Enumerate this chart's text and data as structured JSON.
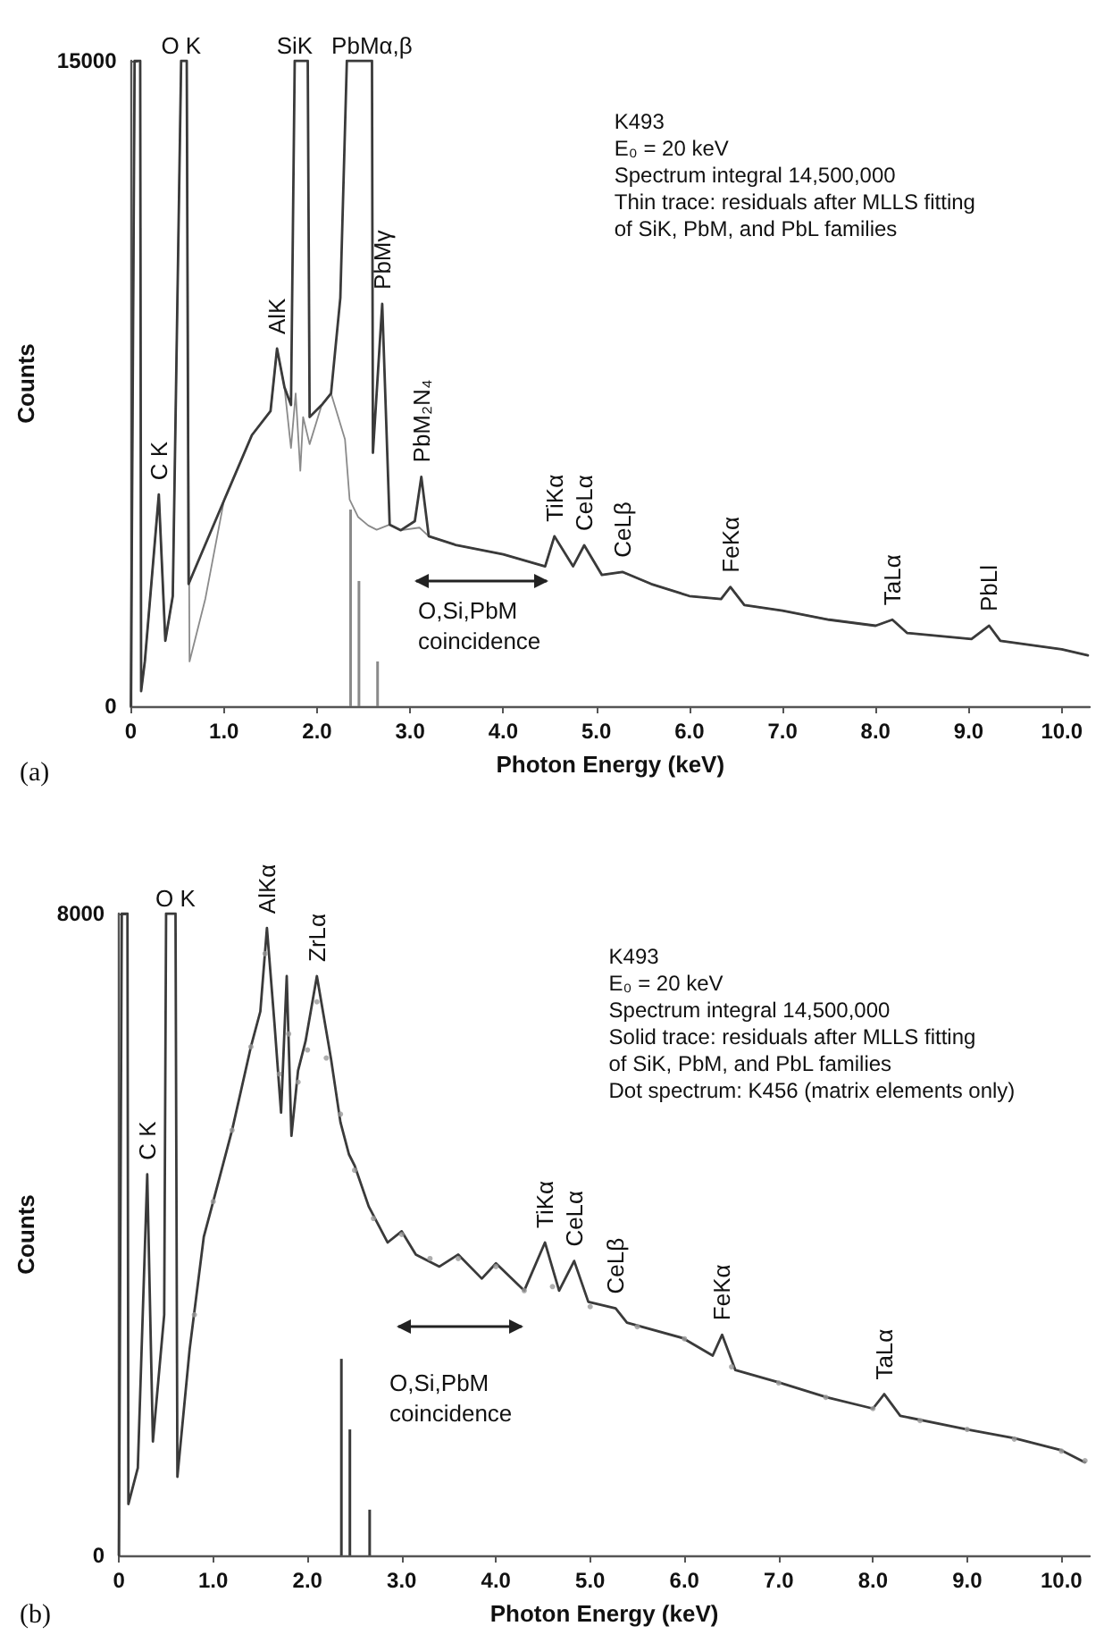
{
  "chart_data": [
    {
      "type": "line",
      "title": "(a)",
      "xlabel": "Photon Energy (keV)",
      "ylabel": "Counts",
      "xlim": [
        0,
        10.3
      ],
      "xticks": [
        0,
        {
          "value": 1,
          "label": "1.0"
        },
        {
          "value": 2,
          "label": "2.0"
        },
        {
          "value": 3,
          "label": "3.0"
        },
        {
          "value": 4,
          "label": "4.0"
        },
        {
          "value": 5,
          "label": "5.0"
        },
        {
          "value": 6,
          "label": "6.0"
        },
        {
          "value": 7,
          "label": "7.0"
        },
        {
          "value": 8,
          "label": "8.0"
        },
        {
          "value": 9,
          "label": "9.0"
        },
        {
          "value": 10,
          "label": "10.0"
        }
      ],
      "ylim": [
        0,
        15000
      ],
      "yticks": [
        0,
        15000
      ],
      "series": [
        {
          "color": "#8a8a8a",
          "x": [
            0,
            0.04,
            0.1,
            0.11,
            0.15,
            0.3,
            0.37,
            0.45,
            0.54,
            0.6,
            0.63,
            0.8,
            1.0,
            1.3,
            1.5,
            1.57,
            1.65,
            1.72,
            1.77,
            1.82,
            1.85,
            1.92,
            2.05,
            2.15,
            2.3,
            2.35,
            2.44,
            2.55,
            2.64,
            2.78,
            2.9,
            3.1,
            3.2,
            3.5,
            4.0,
            4.45,
            4.55,
            4.75,
            4.87,
            5.06,
            5.28,
            5.59,
            6.0,
            6.34,
            6.44,
            6.59,
            7.0,
            7.5,
            8.0,
            8.18,
            8.34,
            9.03,
            9.22,
            9.34,
            10.0,
            10.28
          ],
          "values": [
            0,
            15000,
            15000,
            350,
            1040,
            4920,
            1520,
            2560,
            15000,
            15000,
            1040,
            2500,
            4780,
            6300,
            6860,
            8310,
            7410,
            6000,
            7270,
            5470,
            6720,
            6090,
            7000,
            7270,
            6200,
            4800,
            4400,
            4200,
            4100,
            4220,
            4090,
            4150,
            3950,
            3740,
            3530,
            3250,
            3950,
            3250,
            3740,
            3050,
            3120,
            2840,
            2560,
            2490,
            2770,
            2350,
            2220,
            2010,
            1870,
            2010,
            1700,
            1560,
            1870,
            1520,
            1320,
            1180
          ]
        },
        {
          "color": "#3a3a3a",
          "x": [
            0,
            0.04,
            0.1,
            0.11,
            0.15,
            0.3,
            0.37,
            0.45,
            0.54,
            0.6,
            0.62,
            0.7,
            1.0,
            1.3,
            1.5,
            1.57,
            1.65,
            1.72,
            1.76,
            1.9,
            1.92,
            2.05,
            2.15,
            2.25,
            2.32,
            2.59,
            2.6,
            2.7,
            2.78,
            2.9,
            3.05,
            3.12,
            3.2,
            3.5,
            4.0,
            4.45,
            4.55,
            4.75,
            4.87,
            5.06,
            5.28,
            5.59,
            6.0,
            6.34,
            6.44,
            6.59,
            7.0,
            7.5,
            8.0,
            8.18,
            8.34,
            9.03,
            9.22,
            9.34,
            10.0,
            10.28
          ],
          "values": [
            0,
            15000,
            15000,
            350,
            1040,
            4920,
            1520,
            2560,
            15000,
            15000,
            2840,
            3250,
            4780,
            6300,
            6860,
            8310,
            7410,
            7000,
            15000,
            15000,
            6720,
            7000,
            7270,
            9490,
            15000,
            15000,
            5890,
            9350,
            4220,
            4090,
            4300,
            5330,
            3950,
            3740,
            3530,
            3250,
            3950,
            3250,
            3740,
            3050,
            3120,
            2840,
            2560,
            2490,
            2770,
            2350,
            2220,
            2010,
            1870,
            2010,
            1700,
            1560,
            1870,
            1520,
            1320,
            1180
          ]
        },
        {
          "type": "bar",
          "color": "#8a8a8a",
          "x": [
            2.36,
            2.45,
            2.65
          ],
          "values": [
            4570,
            2910,
            1040
          ]
        }
      ],
      "annotations": [
        "K493",
        "E₀ = 20 keV",
        "Spectrum integral 14,500,000",
        "Thin trace: residuals after MLLS fitting",
        "of SiK, PbM, and PbL families",
        "O,Si,PbM coincidence",
        {
          "text": "O K",
          "x": 0.54,
          "y": 15000
        },
        {
          "text": "SiK",
          "x": 1.76,
          "y": 15000
        },
        {
          "text": "PbMα,β",
          "x": 2.59,
          "y": 15000
        },
        {
          "text": "C K",
          "x": 0.3,
          "y": 4920
        },
        {
          "text": "AlK",
          "x": 1.57,
          "y": 8310
        },
        {
          "text": "PbMγ",
          "x": 2.7,
          "y": 9350
        },
        {
          "text": "PbM₂N₄",
          "x": 3.12,
          "y": 5330
        },
        {
          "text": "TiKα",
          "x": 4.55,
          "y": 3950
        },
        {
          "text": "CeLα",
          "x": 4.87,
          "y": 3740
        },
        {
          "text": "CeLβ",
          "x": 5.28,
          "y": 3120
        },
        {
          "text": "FeKα",
          "x": 6.44,
          "y": 2770
        },
        {
          "text": "TaLα",
          "x": 8.18,
          "y": 2010
        },
        {
          "text": "PbLl",
          "x": 9.22,
          "y": 1870
        }
      ]
    },
    {
      "type": "line",
      "title": "(b)",
      "xlabel": "Photon Energy (keV)",
      "ylabel": "Counts",
      "xlim": [
        0,
        10.3
      ],
      "xticks": [
        0,
        {
          "value": 1,
          "label": "1.0"
        },
        {
          "value": 2,
          "label": "2.0"
        },
        {
          "value": 3,
          "label": "3.0"
        },
        {
          "value": 4,
          "label": "4.0"
        },
        {
          "value": 5,
          "label": "5.0"
        },
        {
          "value": 6,
          "label": "6.0"
        },
        {
          "value": 7,
          "label": "7.0"
        },
        {
          "value": 8,
          "label": "8.0"
        },
        {
          "value": 9,
          "label": "9.0"
        },
        {
          "value": 10,
          "label": "10.0"
        }
      ],
      "ylim": [
        0,
        8000
      ],
      "yticks": [
        0,
        8000
      ],
      "series": [
        {
          "color": "#3a3a3a",
          "x": [
            0,
            0.03,
            0.09,
            0.1,
            0.2,
            0.3,
            0.36,
            0.48,
            0.5,
            0.6,
            0.62,
            0.75,
            0.9,
            1.0,
            1.2,
            1.4,
            1.5,
            1.57,
            1.65,
            1.72,
            1.78,
            1.83,
            1.9,
            1.98,
            2.1,
            2.25,
            2.35,
            2.44,
            2.5,
            2.65,
            2.85,
            3.0,
            3.15,
            3.4,
            3.6,
            3.85,
            4.0,
            4.3,
            4.52,
            4.67,
            4.83,
            4.98,
            5.27,
            5.39,
            5.98,
            6.3,
            6.4,
            6.54,
            6.99,
            7.51,
            8.0,
            8.12,
            8.29,
            9.0,
            9.5,
            10.0,
            10.25
          ],
          "values": [
            0,
            8000,
            8000,
            640,
            1090,
            4750,
            1420,
            3000,
            8000,
            8000,
            980,
            2570,
            3970,
            4410,
            5300,
            6340,
            6780,
            7820,
            6630,
            5520,
            7220,
            5230,
            6040,
            6410,
            7220,
            6190,
            5400,
            5000,
            4860,
            4350,
            3900,
            4040,
            3750,
            3600,
            3750,
            3450,
            3640,
            3300,
            3900,
            3300,
            3670,
            3160,
            3080,
            2900,
            2710,
            2490,
            2750,
            2310,
            2160,
            1970,
            1830,
            2010,
            1740,
            1570,
            1460,
            1310,
            1160
          ]
        },
        {
          "type": "scatter",
          "color": "#9a9a9a",
          "x": [
            0.8,
            1.0,
            1.2,
            1.4,
            1.55,
            1.7,
            1.8,
            1.9,
            2.0,
            2.1,
            2.2,
            2.35,
            2.5,
            2.7,
            3.0,
            3.3,
            3.6,
            4.0,
            4.3,
            4.6,
            5.0,
            5.5,
            6.0,
            6.5,
            7.0,
            7.5,
            8.0,
            8.5,
            9.0,
            9.5,
            10.0,
            10.25
          ],
          "values": [
            3000,
            4410,
            5300,
            6340,
            7500,
            6000,
            6500,
            5900,
            6300,
            6900,
            6200,
            5500,
            4800,
            4200,
            4000,
            3700,
            3700,
            3600,
            3300,
            3350,
            3100,
            2850,
            2700,
            2350,
            2150,
            1970,
            1830,
            1680,
            1570,
            1450,
            1300,
            1180
          ]
        },
        {
          "type": "bar",
          "color": "#3a3a3a",
          "x": [
            2.36,
            2.45,
            2.66
          ],
          "values": [
            2450,
            1570,
            570
          ]
        }
      ],
      "annotations": [
        "K493",
        "E₀ = 20 keV",
        "Spectrum integral 14,500,000",
        "Solid trace: residuals after MLLS fitting",
        "of SiK, PbM, and PbL families",
        "Dot spectrum: K456 (matrix elements only)",
        "O,Si,PbM coincidence",
        {
          "text": "O K",
          "x": 0.6,
          "y": 8000
        },
        {
          "text": "C K",
          "x": 0.3,
          "y": 4750
        },
        {
          "text": "AlKα",
          "x": 1.57,
          "y": 7820
        },
        {
          "text": "ZrLα",
          "x": 2.1,
          "y": 7220
        },
        {
          "text": "TiKα",
          "x": 4.52,
          "y": 3900
        },
        {
          "text": "CeLα",
          "x": 4.83,
          "y": 3670
        },
        {
          "text": "CeLβ",
          "x": 5.27,
          "y": 3080
        },
        {
          "text": "FeKα",
          "x": 6.4,
          "y": 2750
        },
        {
          "text": "TaLα",
          "x": 8.12,
          "y": 2010
        }
      ]
    }
  ]
}
